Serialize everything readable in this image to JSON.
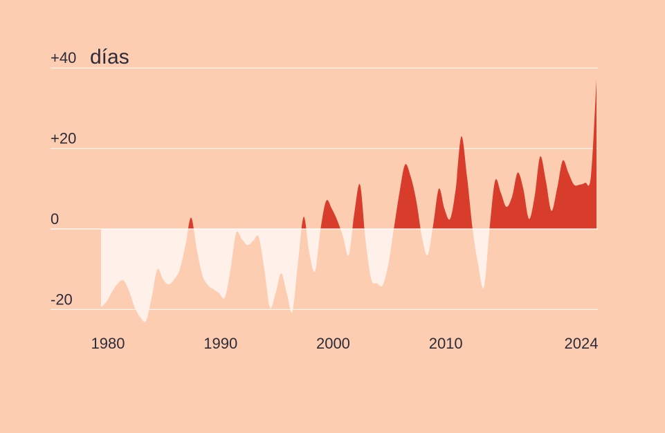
{
  "chart_data": {
    "type": "area",
    "unit_label": "días",
    "y_ticks": [
      {
        "value": 40,
        "label": "+40"
      },
      {
        "value": 20,
        "label": "+20"
      },
      {
        "value": 0,
        "label": "0"
      },
      {
        "value": -20,
        "label": "-20"
      }
    ],
    "x_ticks": [
      {
        "value": 1980,
        "label": "1980"
      },
      {
        "value": 1990,
        "label": "1990"
      },
      {
        "value": 2000,
        "label": "2000"
      },
      {
        "value": 2010,
        "label": "2010"
      },
      {
        "value": 2024,
        "label": "2024"
      }
    ],
    "xlim": [
      1980,
      2024
    ],
    "ylim": [
      -20,
      40
    ],
    "grid": true,
    "colors": {
      "background": "#fdcdb2",
      "positive": "#d83d2c",
      "negative": "#fff1ea",
      "grid": "#ffffff",
      "text": "#2b2b3a"
    },
    "series": [
      {
        "x": [
          1980.0,
          1980.5,
          1981.0,
          1981.5,
          1982.0,
          1982.5,
          1983.0,
          1983.5,
          1984.0,
          1984.5,
          1985.0,
          1985.5,
          1986.0,
          1986.5,
          1987.0,
          1987.5,
          1988.0,
          1988.5,
          1989.0,
          1989.5,
          1990.0,
          1990.5,
          1991.0,
          1991.5,
          1992.0,
          1992.5,
          1993.0,
          1993.5,
          1994.0,
          1994.5,
          1995.0,
          1995.5,
          1996.0,
          1996.5,
          1997.0,
          1997.5,
          1998.0,
          1998.5,
          1999.0,
          1999.5,
          2000.0,
          2000.5,
          2001.0,
          2001.5,
          2002.0,
          2002.5,
          2003.0,
          2003.5,
          2004.0,
          2004.5,
          2005.0,
          2005.5,
          2006.0,
          2006.5,
          2007.0,
          2007.5,
          2008.0,
          2008.5,
          2009.0,
          2009.5,
          2010.0,
          2010.5,
          2011.0,
          2011.5,
          2012.0,
          2012.5,
          2013.0,
          2013.5,
          2014.0,
          2014.5,
          2015.0,
          2015.5,
          2016.0,
          2016.5,
          2017.0,
          2017.5,
          2018.0,
          2018.5,
          2019.0,
          2019.5,
          2020.0,
          2020.5,
          2021.0,
          2021.5,
          2022.0,
          2022.5,
          2023.0,
          2023.5,
          2024.0
        ],
        "y": [
          -19.5,
          -18.0,
          -15.5,
          -13.5,
          -12.8,
          -15.5,
          -19.5,
          -22.0,
          -22.8,
          -17.0,
          -10.0,
          -12.5,
          -13.8,
          -12.5,
          -10.0,
          -4.0,
          2.8,
          -5.0,
          -11.5,
          -14.0,
          -15.0,
          -16.0,
          -17.0,
          -10.0,
          -1.0,
          -2.5,
          -4.0,
          -3.0,
          -2.0,
          -10.0,
          -19.5,
          -16.0,
          -11.0,
          -16.0,
          -20.5,
          -8.0,
          3.0,
          -6.0,
          -10.5,
          0.0,
          7.0,
          5.0,
          2.0,
          -2.0,
          -6.5,
          4.0,
          11.0,
          -3.0,
          -12.5,
          -13.5,
          -14.0,
          -9.0,
          0.0,
          9.0,
          16.0,
          13.0,
          7.0,
          -2.0,
          -6.5,
          1.0,
          10.0,
          5.0,
          2.5,
          10.0,
          23.0,
          13.0,
          0.0,
          -9.0,
          -14.5,
          0.0,
          12.0,
          9.0,
          5.5,
          8.0,
          14.0,
          10.0,
          2.5,
          8.0,
          18.0,
          12.0,
          4.5,
          10.0,
          17.0,
          14.0,
          11.0,
          11.0,
          11.5,
          13.0,
          37.0
        ]
      }
    ]
  }
}
